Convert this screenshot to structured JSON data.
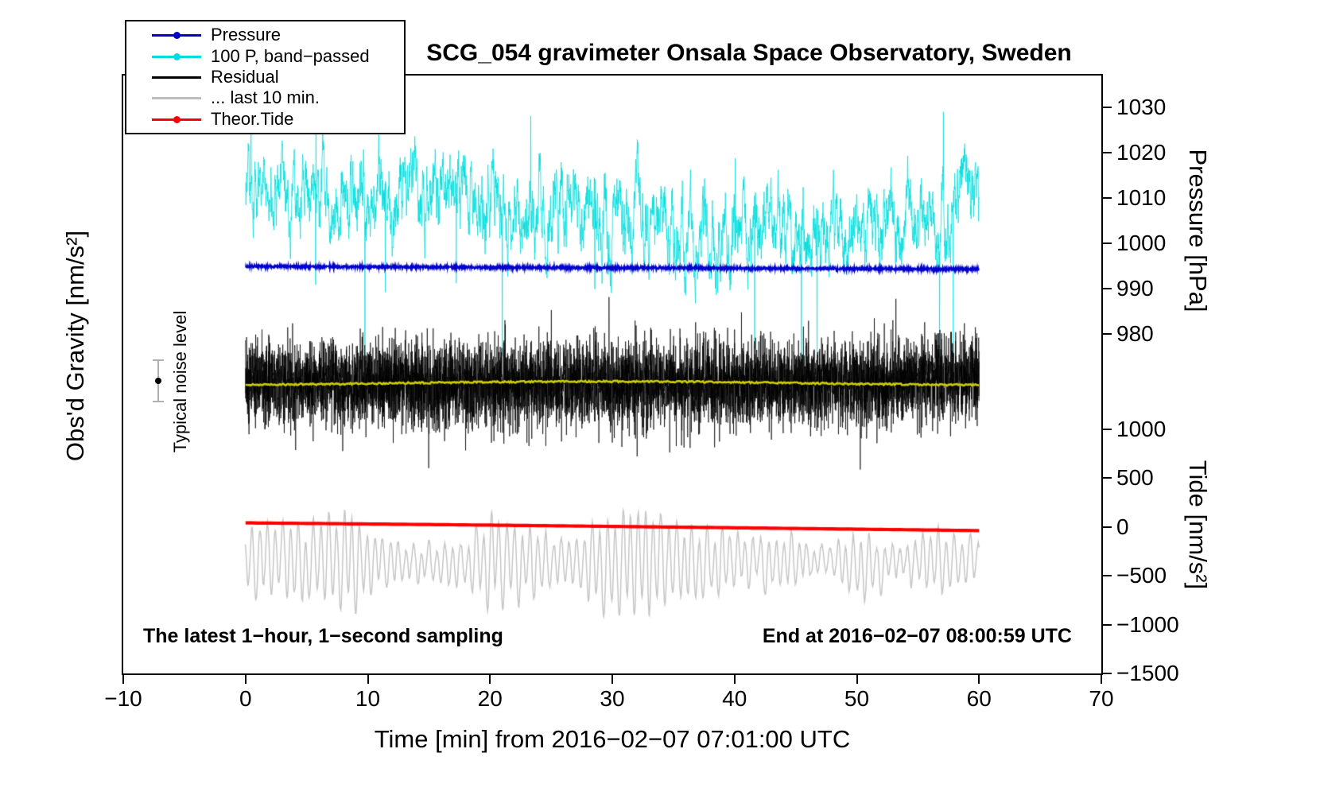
{
  "chart_data": {
    "type": "line",
    "title": "SCG_054 gravimeter Onsala Space Observatory, Sweden",
    "xlabel": "Time [min] from 2016−02−07 07:01:00 UTC",
    "ylabel_left": "Obs'd Gravity [nm/s²]",
    "ylabel_pressure": "Pressure [hPa]",
    "ylabel_tide": "Tide [nm/s²]",
    "x_range": [
      -10,
      70
    ],
    "x_ticks": [
      -10,
      0,
      10,
      20,
      30,
      40,
      50,
      60,
      70
    ],
    "pressure_ticks": [
      1030,
      1020,
      1010,
      1000,
      990,
      980
    ],
    "tide_ticks": [
      1000,
      500,
      0,
      -500,
      -1000,
      -1500
    ],
    "data_time_span_min": [
      0,
      60
    ],
    "grid": false,
    "legend_position": "top-left",
    "legend": [
      {
        "label": "Pressure",
        "color": "#0000cc",
        "marker": true
      },
      {
        "label": "100 P, band−passed",
        "color": "#00dddd",
        "marker": true
      },
      {
        "label": "Residual",
        "color": "#000000",
        "marker": false
      },
      {
        "label": "... last 10 min.",
        "color": "#bdbdbd",
        "marker": false
      },
      {
        "label": "Theor.Tide",
        "color": "#ff0000",
        "marker": true
      }
    ],
    "series": [
      {
        "name": "Pressure",
        "color": "#0000cc",
        "axis": "pressure",
        "baseline_hPa": 994.9,
        "end_hPa": 994.3,
        "jitter_hPa": 0.5,
        "description": "nearly constant ~994.5 hPa over 0–60 min"
      },
      {
        "name": "100 P, band-passed",
        "color": "#00dddd",
        "axis": "pressure",
        "center_hPa": 1007,
        "typical_band_hPa": [
          997,
          1020
        ],
        "spike_min_hPa": 973,
        "spike_max_hPa": 1029,
        "description": "dense band-passed noise with downward spikes"
      },
      {
        "name": "Residual",
        "color": "#000000",
        "axis": "gravity",
        "description": "zero-mean 1 Hz residual noise band (gravity axis unlabeled)"
      },
      {
        "name": "Residual running mean",
        "color": "#cdcd00",
        "axis": "gravity",
        "description": "slowly varying yellow mean line through residual band"
      },
      {
        "name": "... last 10 min.",
        "color": "#c6c6c6",
        "axis": "tide",
        "center_tide": -360,
        "amplitude_tide": [
          100,
          560
        ],
        "period_s": 38,
        "description": "oscillatory gray trace near tide −360 nm/s²"
      },
      {
        "name": "Theor.Tide",
        "color": "#ff0000",
        "axis": "tide",
        "start_tide": 40,
        "end_tide": -35,
        "description": "smooth theoretical tide, slowly decreasing through 0"
      }
    ],
    "annotations": {
      "sampling_note": "The latest 1−hour, 1−second sampling",
      "end_time_note": "End at 2016−02−07 08:00:59 UTC",
      "noise_label": "Typical noise level"
    }
  },
  "colors": {
    "frame": "#000000",
    "background": "#ffffff",
    "pressure": "#0000cc",
    "band_passed": "#00dddd",
    "residual": "#000000",
    "residual_mean": "#cdcd00",
    "last_10_min": "#c6c6c6",
    "theor_tide": "#ff0000",
    "noise_bar": "#b0b0b0"
  }
}
